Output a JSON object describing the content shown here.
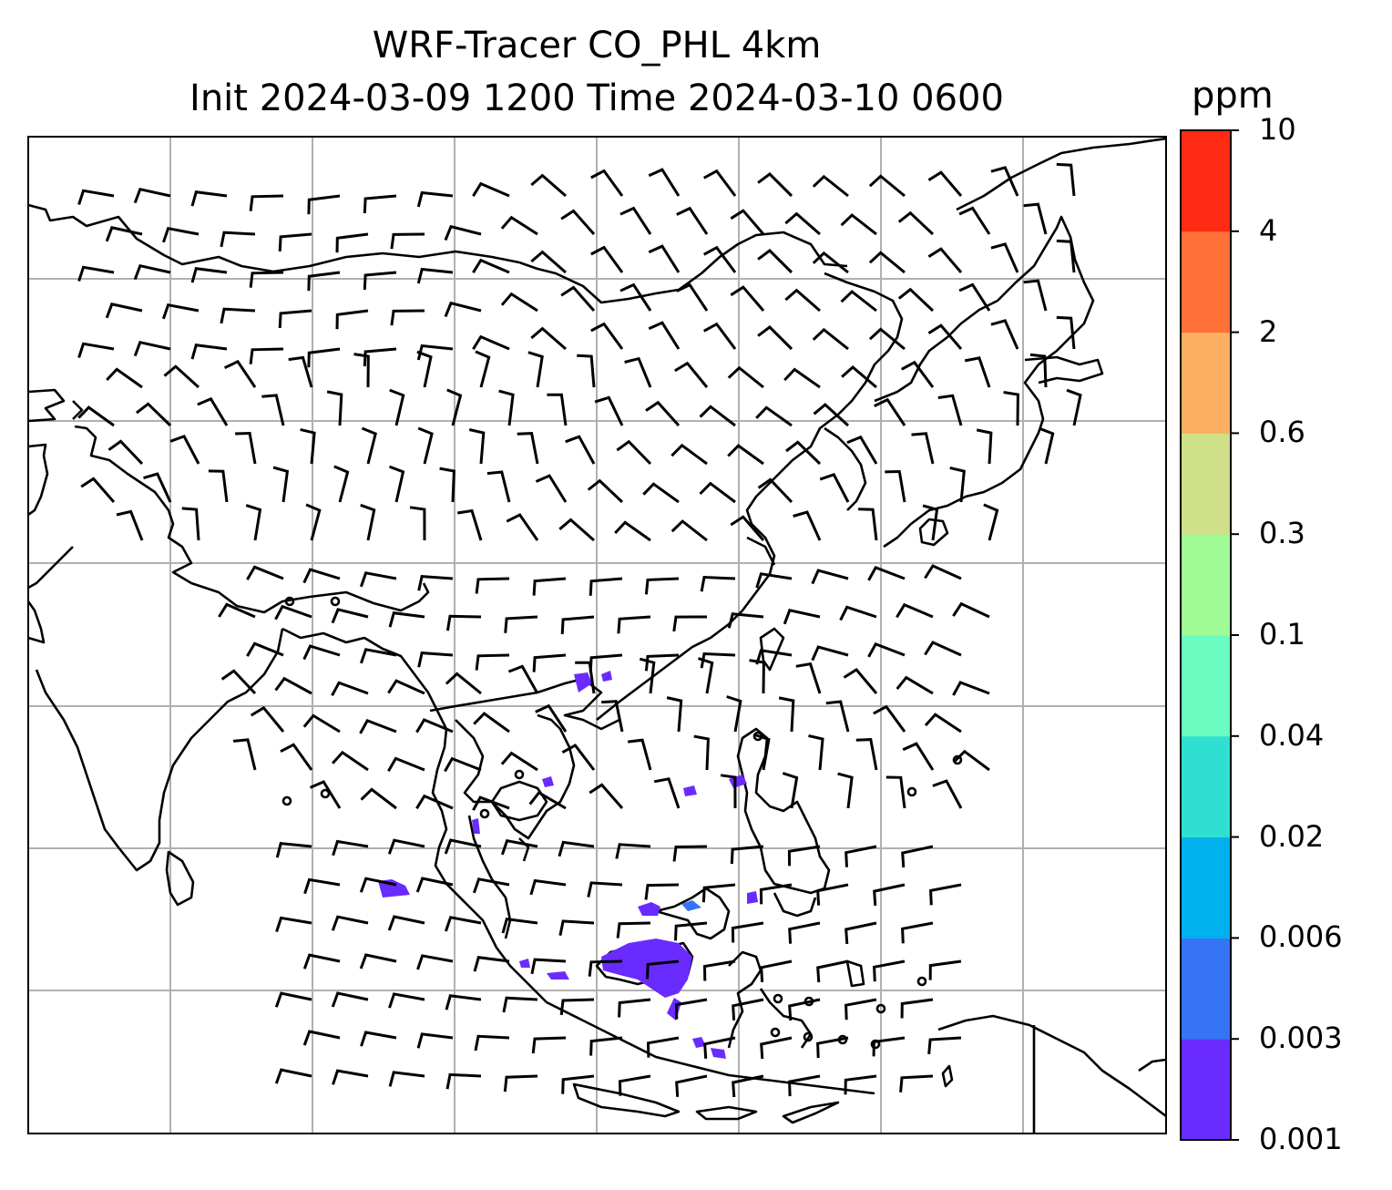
{
  "title": {
    "line1": "WRF-Tracer CO_PHL 4km",
    "line2": "Init 2024-03-09 1200 Time 2024-03-10 0600"
  },
  "colorbar": {
    "unit": "ppm",
    "ticks": [
      "0.001",
      "0.003",
      "0.006",
      "0.02",
      "0.04",
      "0.1",
      "0.3",
      "0.6",
      "2",
      "4",
      "10"
    ],
    "colors": [
      "#6a2bff",
      "#3574f4",
      "#00b1ee",
      "#2fe0d2",
      "#6bfcc1",
      "#9efb95",
      "#d0e088",
      "#fdb062",
      "#ff7137",
      "#ff2a13"
    ]
  },
  "map": {
    "gridlines": true,
    "layers": [
      "coastlines",
      "country-borders",
      "wind-barbs",
      "tracer-concentration"
    ],
    "tracer_color": "#6a2bff"
  }
}
